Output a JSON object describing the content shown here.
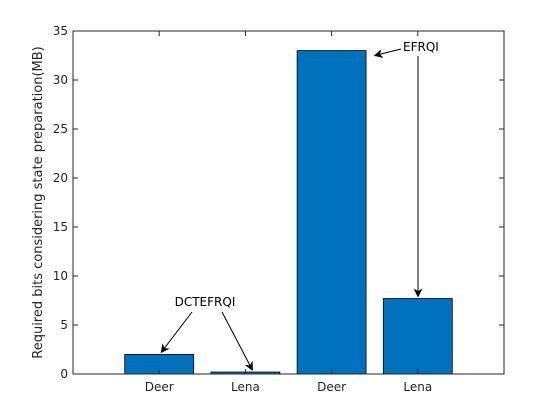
{
  "chart_data": {
    "type": "bar",
    "categories": [
      "Deer",
      "Lena",
      "Deer",
      "Lena"
    ],
    "values": [
      2.0,
      0.2,
      33.0,
      7.7
    ],
    "title": "",
    "xlabel": "",
    "ylabel": "Required bits considering state preparation(MB)",
    "ylim": [
      0,
      35
    ],
    "yticks": [
      0,
      5,
      10,
      15,
      20,
      25,
      30,
      35
    ],
    "xlim": [
      0.5,
      5.5
    ],
    "x_positions": [
      1.5,
      2.5,
      3.5,
      4.5
    ],
    "bar_color": "#0072bd",
    "grid": false,
    "annotations": [
      {
        "text": "DCTEFRQI",
        "targets": [
          0,
          1
        ]
      },
      {
        "text": "EFRQI",
        "targets": [
          2,
          3
        ]
      }
    ]
  }
}
